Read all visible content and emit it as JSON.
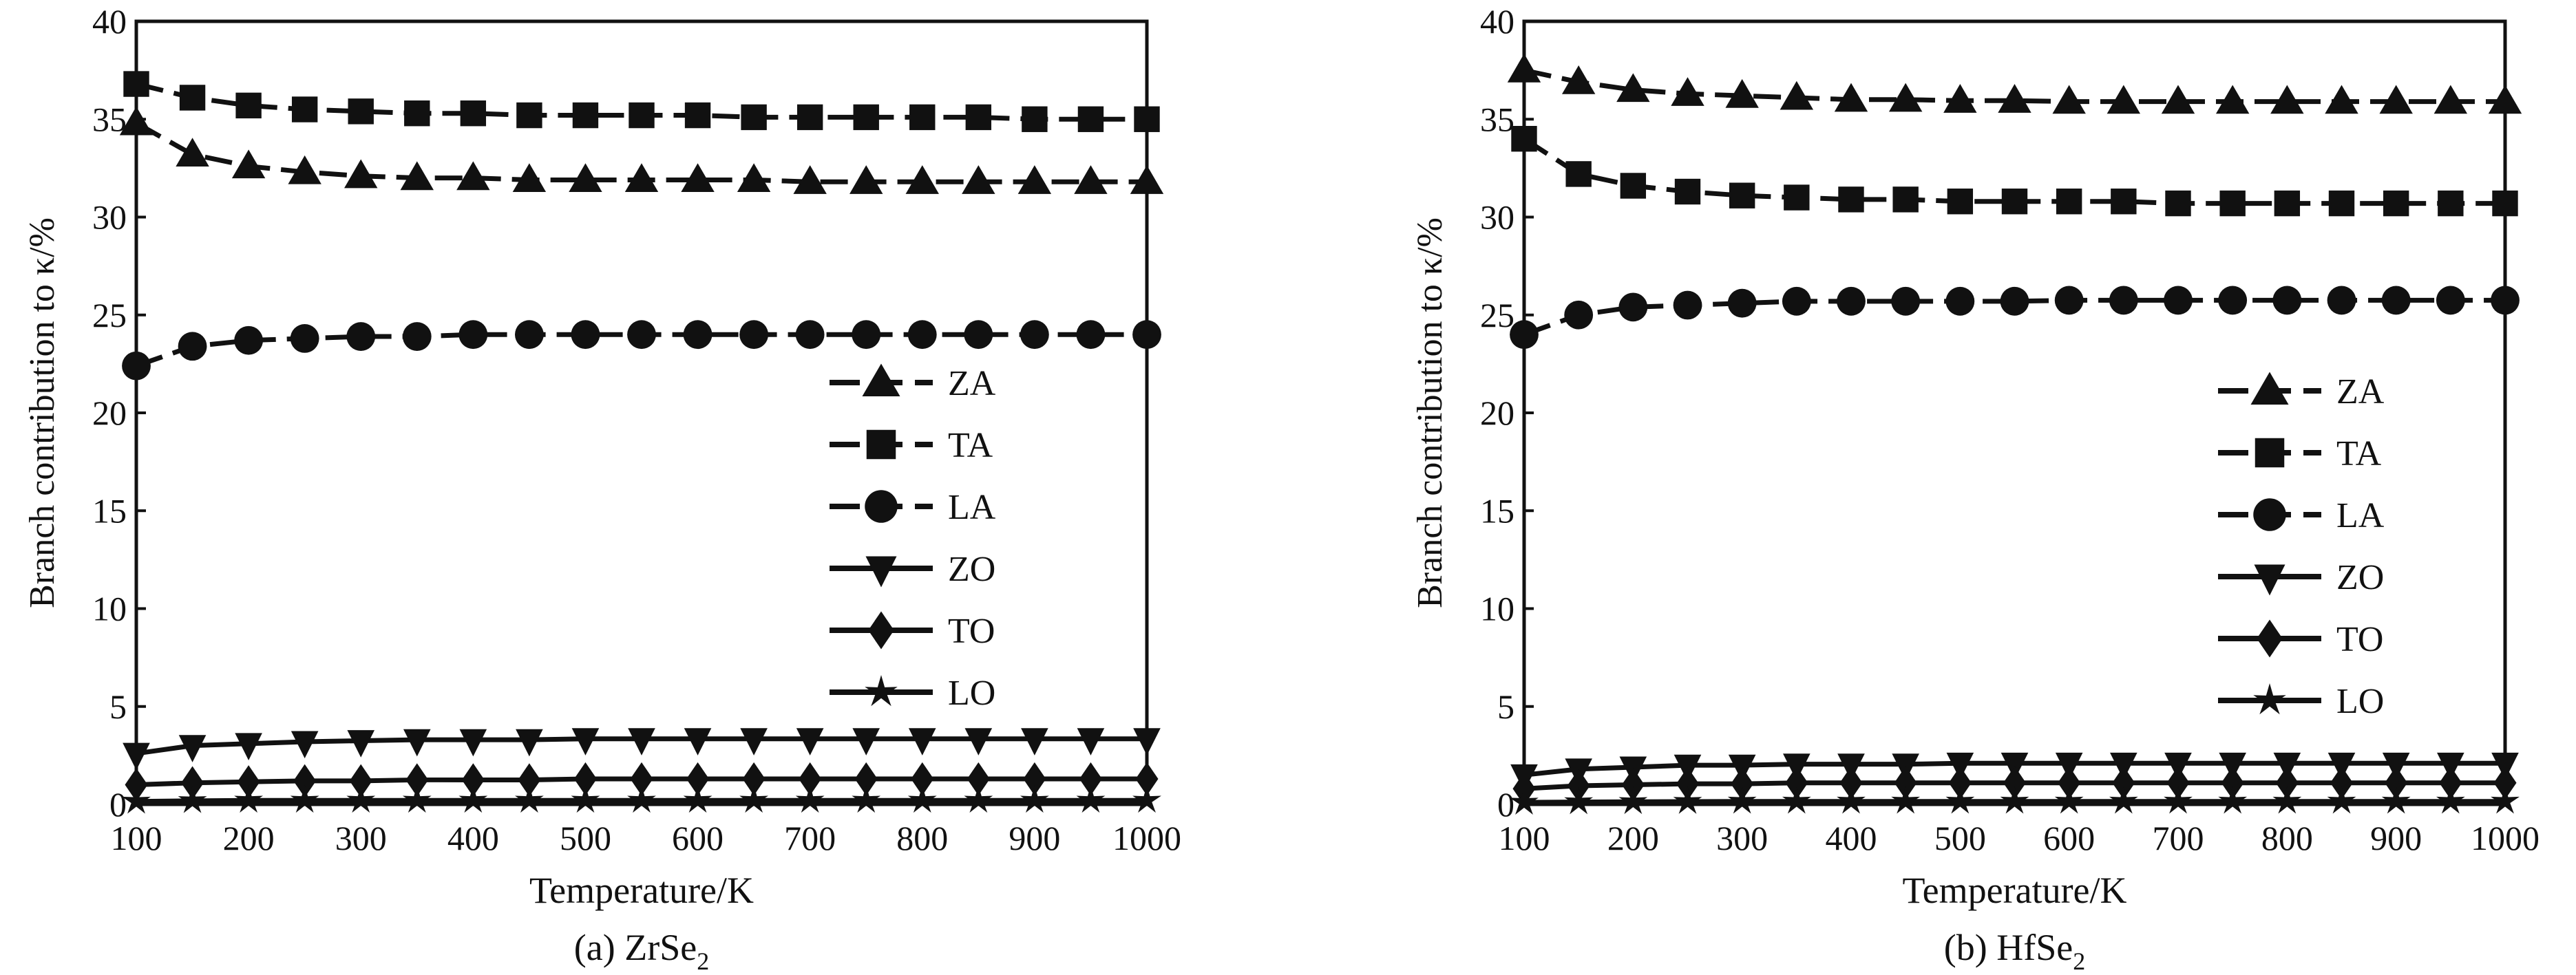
{
  "chart_data": [
    {
      "type": "line",
      "caption": "(a) ZrSe",
      "caption_sub": "2",
      "xlabel": "Temperature/K",
      "ylabel": "Branch contribution to κ/%",
      "xlim": [
        100,
        1000
      ],
      "ylim": [
        0,
        40
      ],
      "xticks": [
        "100",
        "200",
        "300",
        "400",
        "500",
        "600",
        "700",
        "800",
        "900",
        "1000"
      ],
      "yticks": [
        "0",
        "5",
        "10",
        "15",
        "20",
        "25",
        "30",
        "35",
        "40"
      ],
      "legend_position": "center-right",
      "x": [
        100,
        150,
        200,
        250,
        300,
        350,
        400,
        450,
        500,
        550,
        600,
        650,
        700,
        750,
        800,
        850,
        900,
        950,
        1000
      ],
      "series": [
        {
          "name": "ZA",
          "marker": "triangle-up",
          "dashed": true,
          "values": [
            34.8,
            33.2,
            32.6,
            32.3,
            32.1,
            32.0,
            32.0,
            31.9,
            31.9,
            31.9,
            31.9,
            31.9,
            31.8,
            31.8,
            31.8,
            31.8,
            31.8,
            31.8,
            31.8
          ]
        },
        {
          "name": "TA",
          "marker": "square",
          "dashed": true,
          "values": [
            36.8,
            36.1,
            35.7,
            35.5,
            35.4,
            35.3,
            35.3,
            35.2,
            35.2,
            35.2,
            35.2,
            35.1,
            35.1,
            35.1,
            35.1,
            35.1,
            35.0,
            35.0,
            35.0
          ]
        },
        {
          "name": "LA",
          "marker": "circle",
          "dashed": true,
          "values": [
            22.4,
            23.4,
            23.7,
            23.8,
            23.9,
            23.9,
            24.0,
            24.0,
            24.0,
            24.0,
            24.0,
            24.0,
            24.0,
            24.0,
            24.0,
            24.0,
            24.0,
            24.0,
            24.0
          ]
        },
        {
          "name": "ZO",
          "marker": "triangle-down",
          "dashed": false,
          "values": [
            2.6,
            3.0,
            3.1,
            3.2,
            3.25,
            3.3,
            3.3,
            3.3,
            3.35,
            3.35,
            3.35,
            3.35,
            3.35,
            3.35,
            3.35,
            3.35,
            3.35,
            3.35,
            3.35
          ]
        },
        {
          "name": "TO",
          "marker": "diamond",
          "dashed": false,
          "values": [
            1.0,
            1.1,
            1.15,
            1.2,
            1.2,
            1.25,
            1.25,
            1.25,
            1.3,
            1.3,
            1.3,
            1.3,
            1.3,
            1.3,
            1.3,
            1.3,
            1.3,
            1.3,
            1.3
          ]
        },
        {
          "name": "LO",
          "marker": "star",
          "dashed": false,
          "values": [
            0.15,
            0.18,
            0.2,
            0.2,
            0.2,
            0.2,
            0.2,
            0.2,
            0.2,
            0.2,
            0.2,
            0.2,
            0.2,
            0.2,
            0.2,
            0.2,
            0.2,
            0.2,
            0.2
          ]
        }
      ]
    },
    {
      "type": "line",
      "caption": "(b) HfSe",
      "caption_sub": "2",
      "xlabel": "Temperature/K",
      "ylabel": "Branch contribution to κ/%",
      "xlim": [
        100,
        1000
      ],
      "ylim": [
        0,
        40
      ],
      "xticks": [
        "100",
        "200",
        "300",
        "400",
        "500",
        "600",
        "700",
        "800",
        "900",
        "1000"
      ],
      "yticks": [
        "0",
        "5",
        "10",
        "15",
        "20",
        "25",
        "30",
        "35",
        "40"
      ],
      "legend_position": "center-right",
      "x": [
        100,
        150,
        200,
        250,
        300,
        350,
        400,
        450,
        500,
        550,
        600,
        650,
        700,
        750,
        800,
        850,
        900,
        950,
        1000
      ],
      "series": [
        {
          "name": "ZA",
          "marker": "triangle-up",
          "dashed": true,
          "values": [
            37.5,
            36.9,
            36.5,
            36.3,
            36.2,
            36.1,
            36.0,
            36.0,
            35.95,
            35.95,
            35.9,
            35.9,
            35.9,
            35.9,
            35.9,
            35.9,
            35.9,
            35.9,
            35.9
          ]
        },
        {
          "name": "TA",
          "marker": "square",
          "dashed": true,
          "values": [
            34.0,
            32.2,
            31.6,
            31.3,
            31.1,
            31.0,
            30.9,
            30.9,
            30.8,
            30.8,
            30.8,
            30.8,
            30.7,
            30.7,
            30.7,
            30.7,
            30.7,
            30.7,
            30.7
          ]
        },
        {
          "name": "LA",
          "marker": "circle",
          "dashed": true,
          "values": [
            24.0,
            25.0,
            25.4,
            25.5,
            25.6,
            25.7,
            25.7,
            25.7,
            25.7,
            25.7,
            25.75,
            25.75,
            25.75,
            25.75,
            25.75,
            25.75,
            25.75,
            25.75,
            25.75
          ]
        },
        {
          "name": "ZO",
          "marker": "triangle-down",
          "dashed": false,
          "values": [
            1.5,
            1.8,
            1.9,
            2.0,
            2.0,
            2.05,
            2.05,
            2.05,
            2.1,
            2.1,
            2.1,
            2.1,
            2.1,
            2.1,
            2.1,
            2.1,
            2.1,
            2.1,
            2.1
          ]
        },
        {
          "name": "TO",
          "marker": "diamond",
          "dashed": false,
          "values": [
            0.8,
            0.95,
            1.0,
            1.05,
            1.05,
            1.1,
            1.1,
            1.1,
            1.1,
            1.1,
            1.1,
            1.1,
            1.1,
            1.1,
            1.1,
            1.1,
            1.1,
            1.1,
            1.1
          ]
        },
        {
          "name": "LO",
          "marker": "star",
          "dashed": false,
          "values": [
            0.1,
            0.12,
            0.13,
            0.14,
            0.15,
            0.15,
            0.15,
            0.15,
            0.15,
            0.15,
            0.15,
            0.15,
            0.15,
            0.15,
            0.15,
            0.15,
            0.15,
            0.15,
            0.15
          ]
        }
      ]
    }
  ]
}
